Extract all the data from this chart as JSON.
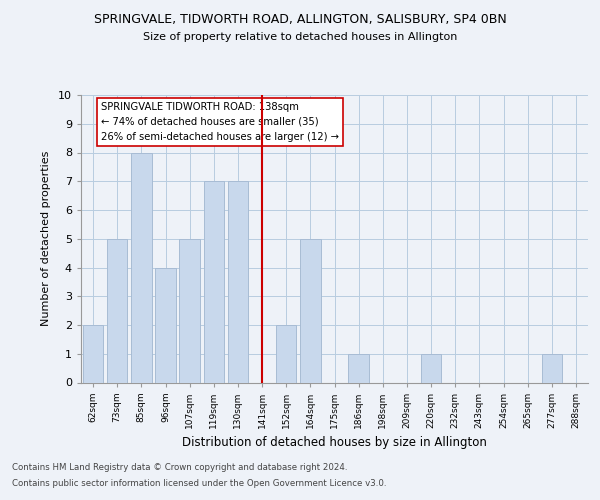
{
  "title1": "SPRINGVALE, TIDWORTH ROAD, ALLINGTON, SALISBURY, SP4 0BN",
  "title2": "Size of property relative to detached houses in Allington",
  "xlabel": "Distribution of detached houses by size in Allington",
  "ylabel": "Number of detached properties",
  "categories": [
    "62sqm",
    "73sqm",
    "85sqm",
    "96sqm",
    "107sqm",
    "119sqm",
    "130sqm",
    "141sqm",
    "152sqm",
    "164sqm",
    "175sqm",
    "186sqm",
    "198sqm",
    "209sqm",
    "220sqm",
    "232sqm",
    "243sqm",
    "254sqm",
    "265sqm",
    "277sqm",
    "288sqm"
  ],
  "values": [
    2,
    5,
    8,
    4,
    5,
    7,
    7,
    0,
    2,
    5,
    0,
    1,
    0,
    0,
    1,
    0,
    0,
    0,
    0,
    1,
    0
  ],
  "bar_color": "#c8d8ec",
  "bar_edge_color": "#a8bcd4",
  "reference_line_color": "#cc0000",
  "annotation_text": "SPRINGVALE TIDWORTH ROAD: 138sqm\n← 74% of detached houses are smaller (35)\n26% of semi-detached houses are larger (12) →",
  "annotation_box_color": "#ffffff",
  "annotation_box_edge_color": "#cc0000",
  "grid_color": "#b8cce0",
  "ylim": [
    0,
    10
  ],
  "yticks": [
    0,
    1,
    2,
    3,
    4,
    5,
    6,
    7,
    8,
    9,
    10
  ],
  "footnote1": "Contains HM Land Registry data © Crown copyright and database right 2024.",
  "footnote2": "Contains public sector information licensed under the Open Government Licence v3.0.",
  "bg_color": "#eef2f8",
  "plot_bg_color": "#eef2f8"
}
